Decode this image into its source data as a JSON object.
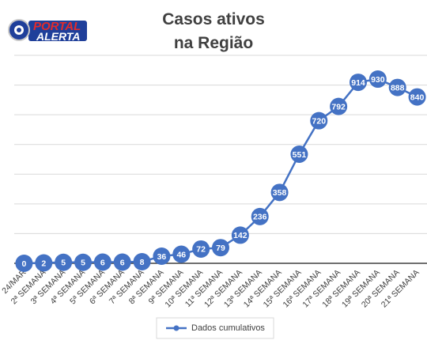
{
  "logo": {
    "line1": "PORTAL",
    "line2": "ALERTA"
  },
  "chart_data": {
    "type": "line",
    "title": "Casos ativos na Região",
    "categories": [
      "24/MAR",
      "2ª SEMANA",
      "3ª SEMANA",
      "4ª SEMANA",
      "5ª SEMANA",
      "6ª SEMANA",
      "7ª SEMANA",
      "8ª SEMANA",
      "9ª SEMANA",
      "10ª SEMANA",
      "11ª SEMANA",
      "12ª SEMANA",
      "13ª SEMANA",
      "14ª SEMANA",
      "15ª SEMANA",
      "16ª SEMANA",
      "17ª SEMANA",
      "18ª SEMANA",
      "19ª SEMANA",
      "20ª SEMANA",
      "21ª SEMANA"
    ],
    "series": [
      {
        "name": "Dados cumulativos",
        "color": "#4472c4",
        "values": [
          0,
          2,
          5,
          5,
          6,
          6,
          8,
          36,
          46,
          72,
          79,
          142,
          236,
          358,
          551,
          720,
          792,
          914,
          930,
          888,
          840
        ]
      }
    ],
    "ylim": [
      0,
      1050
    ],
    "yticks": [
      0,
      150,
      300,
      450,
      600,
      750,
      900,
      1050
    ],
    "grid": true,
    "legend": "bottom"
  }
}
